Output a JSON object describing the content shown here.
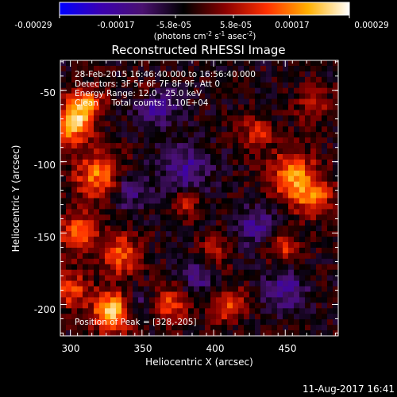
{
  "colorbar": {
    "tick_labels": [
      "-0.00029",
      "-0.00017",
      "-5.8e-05",
      "5.8e-05",
      "0.00017",
      "0.00029"
    ],
    "tick_values": [
      -0.00029,
      -0.00017,
      -5.8e-05,
      5.8e-05,
      0.00017,
      0.00029
    ],
    "range": [
      -0.00029,
      0.00029
    ],
    "units": "(photons cm",
    "units_exp1": "-2",
    "units_mid": " s",
    "units_exp2": "-1",
    "units_end": " asec",
    "units_exp3": "-2",
    "units_close": ")",
    "colormap": [
      "#0000ff",
      "#3b00b0",
      "#4a1170",
      "#000000",
      "#8a0000",
      "#ff3000",
      "#ffb000",
      "#ffffff"
    ]
  },
  "chart_data": {
    "type": "heatmap",
    "title": "Reconstructed RHESSI Image",
    "xlabel": "Heliocentric X (arcsec)",
    "ylabel": "Heliocentric Y (arcsec)",
    "xlim": [
      293,
      487
    ],
    "ylim": [
      -222,
      -29
    ],
    "x_ticks": [
      300,
      350,
      400,
      450
    ],
    "x_tick_labels": [
      "300",
      "350",
      "400",
      "450"
    ],
    "y_ticks": [
      -50,
      -100,
      -150,
      -200
    ],
    "y_tick_labels": [
      "-50",
      "-100",
      "-150",
      "-200"
    ],
    "annotations": [
      "28-Feb-2015 16:46:40.000 to 16:56:40.000",
      "Detectors: 3F 5F 6F 7F 8F 9F, Att 0",
      "Energy Range: 12.0 - 25.0 keV",
      "Clean     Total counts: 1.10E+04"
    ],
    "peak_label": "Position of Peak = [328,-205]",
    "peak": [
      328,
      -205
    ],
    "features": [
      {
        "x": 330,
        "y": -205,
        "v": 1.0,
        "r": 10
      },
      {
        "x": 300,
        "y": -75,
        "v": 0.85,
        "r": 9
      },
      {
        "x": 310,
        "y": -60,
        "v": 0.7,
        "r": 9
      },
      {
        "x": 320,
        "y": -110,
        "v": 0.7,
        "r": 12
      },
      {
        "x": 305,
        "y": -150,
        "v": 0.65,
        "r": 10
      },
      {
        "x": 335,
        "y": -165,
        "v": 0.6,
        "r": 10
      },
      {
        "x": 300,
        "y": -190,
        "v": 0.55,
        "r": 9
      },
      {
        "x": 455,
        "y": -110,
        "v": 0.7,
        "r": 12
      },
      {
        "x": 470,
        "y": -125,
        "v": 0.6,
        "r": 9
      },
      {
        "x": 370,
        "y": -200,
        "v": 0.55,
        "r": 9
      },
      {
        "x": 430,
        "y": -80,
        "v": 0.45,
        "r": 8
      },
      {
        "x": 410,
        "y": -200,
        "v": 0.5,
        "r": 9
      },
      {
        "x": 450,
        "y": -160,
        "v": 0.45,
        "r": 8
      },
      {
        "x": 380,
        "y": -130,
        "v": 0.4,
        "r": 7
      },
      {
        "x": 400,
        "y": -165,
        "v": 0.4,
        "r": 8
      },
      {
        "x": 355,
        "y": -50,
        "v": 0.35,
        "r": 7
      },
      {
        "x": 470,
        "y": -60,
        "v": 0.4,
        "r": 8
      },
      {
        "x": 360,
        "y": -60,
        "v": -0.55,
        "r": 10
      },
      {
        "x": 340,
        "y": -120,
        "v": -0.4,
        "r": 10
      },
      {
        "x": 380,
        "y": -105,
        "v": -0.45,
        "r": 12
      },
      {
        "x": 430,
        "y": -145,
        "v": -0.4,
        "r": 10
      },
      {
        "x": 450,
        "y": -190,
        "v": -0.45,
        "r": 10
      },
      {
        "x": 390,
        "y": -180,
        "v": -0.35,
        "r": 10
      },
      {
        "x": 345,
        "y": -200,
        "v": -0.35,
        "r": 8
      }
    ]
  },
  "footer": {
    "timestamp": "11-Aug-2017 16:41"
  }
}
